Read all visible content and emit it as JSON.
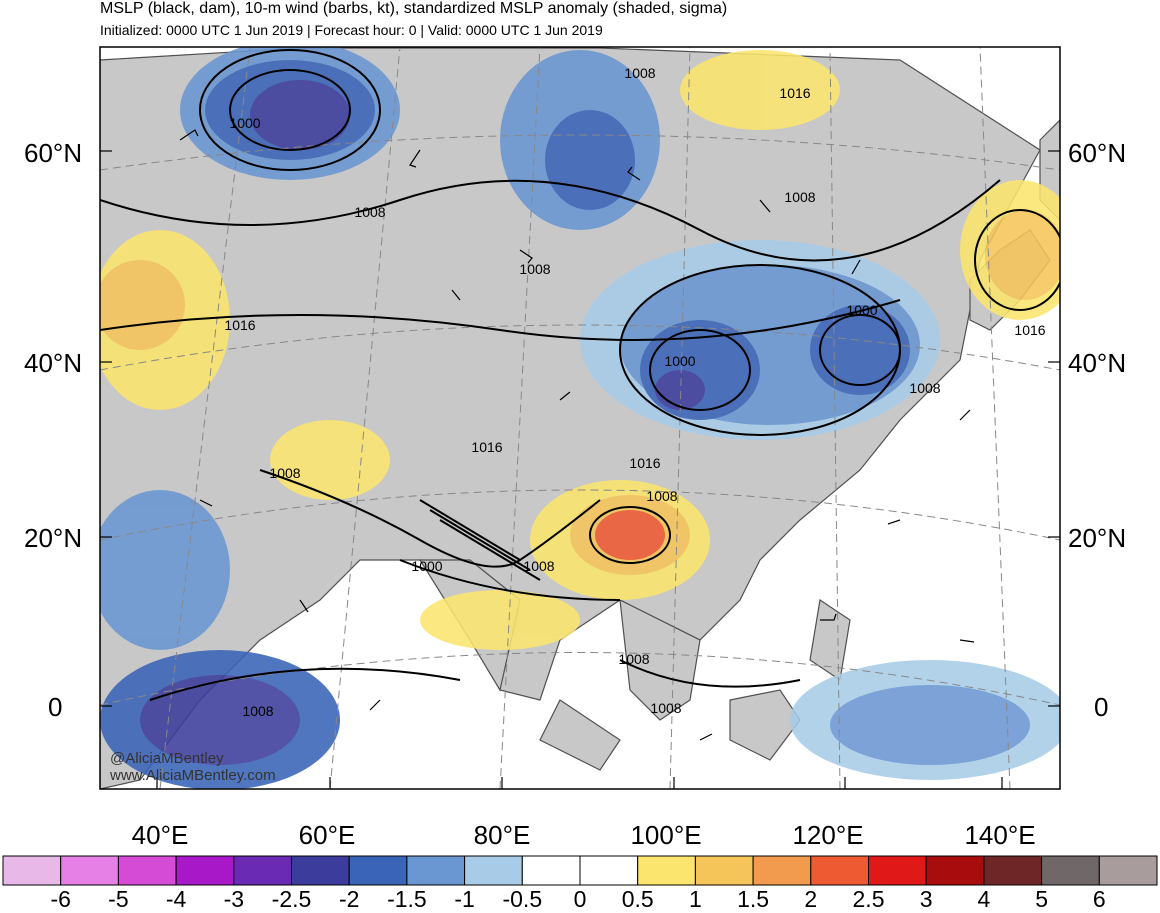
{
  "title": "MSLP (black, dam), 10-m wind (barbs, kt), standardized MSLP anomaly (shaded, sigma)",
  "subtitle": "Initialized: 0000 UTC 1 Jun 2019 | Forecast hour: 0 | Valid: 0000 UTC 1 Jun 2019",
  "lat_labels": [
    "60°N",
    "40°N",
    "20°N",
    "0"
  ],
  "lon_labels": [
    "40°E",
    "60°E",
    "80°E",
    "100°E",
    "120°E",
    "140°E"
  ],
  "contour_labels": [
    "1008",
    "1016",
    "1000",
    "1008",
    "1008",
    "1016",
    "1008",
    "1000",
    "1000",
    "1008",
    "1016",
    "1008",
    "1016",
    "1008",
    "1000",
    "1008",
    "1016",
    "1008",
    "1008",
    "1008"
  ],
  "credits": [
    "@AliciaMBentley",
    "www.AliciaMBentley.com"
  ],
  "colorbar": {
    "labels": [
      "-6",
      "-5",
      "-4",
      "-3",
      "-2.5",
      "-2",
      "-1.5",
      "-1",
      "-0.5",
      "0",
      "0.5",
      "1",
      "1.5",
      "2",
      "2.5",
      "3",
      "4",
      "5",
      "6"
    ],
    "colors": [
      "#e8b8e8",
      "#e680e6",
      "#d64bd6",
      "#a818c8",
      "#6a2ab4",
      "#3c3c9c",
      "#3a64b8",
      "#6a96d2",
      "#a8cce8",
      "#ffffff",
      "#ffffff",
      "#fbe56e",
      "#f5c55a",
      "#f29a4e",
      "#ee5a32",
      "#e01818",
      "#a80c0c",
      "#6e2626",
      "#706868",
      "#a89c9c"
    ]
  },
  "legend_colors": {
    "land": "#c8c8c8",
    "ocean": "#ffffff",
    "coast": "#505050"
  }
}
